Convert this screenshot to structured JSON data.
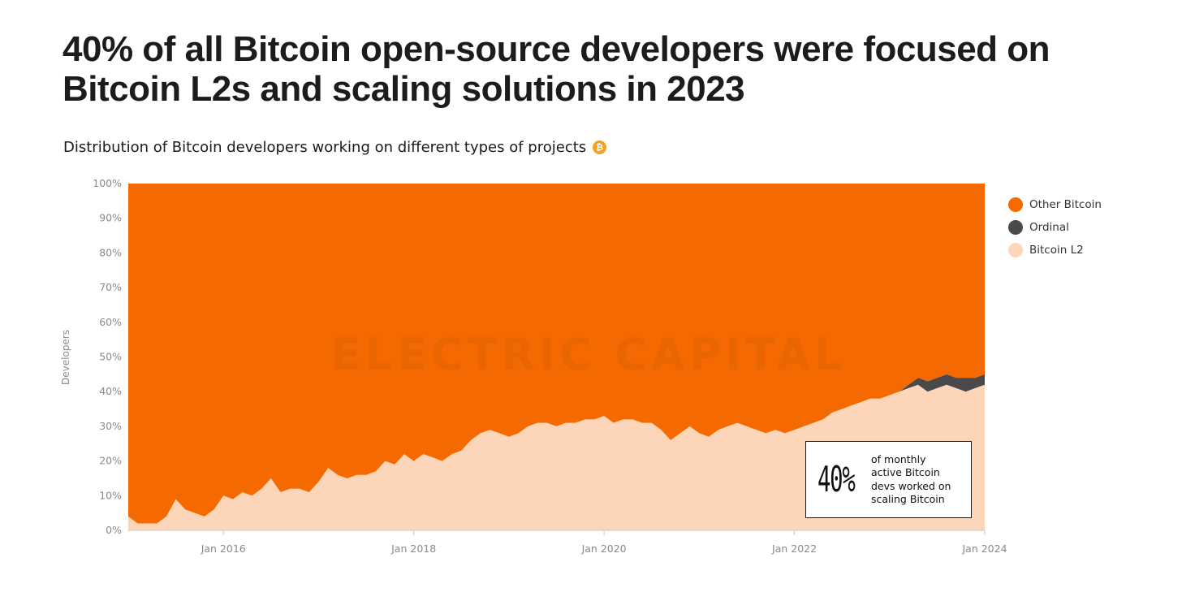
{
  "headline": "40% of all Bitcoin open-source developers were focused on Bitcoin L2s and scaling solutions in  2023",
  "subtitle": "Distribution of Bitcoin developers working on different types of projects",
  "subtitle_badge": "₿",
  "watermark": "ELECTRIC CAPITAL",
  "callout": {
    "big": "40%",
    "text": "of monthly\nactive Bitcoin\ndevs worked on\nscaling Bitcoin"
  },
  "colors": {
    "other_bitcoin": "#F56A00",
    "ordinal": "#4A4A4A",
    "bitcoin_l2": "#FDD5B8",
    "badge": "#F4A020"
  },
  "chart_data": {
    "type": "area",
    "stacked": true,
    "normalized_percent": true,
    "title": "Distribution of Bitcoin developers working on different types of projects",
    "xlabel": "",
    "ylabel": "Developers",
    "ylim": [
      0,
      100
    ],
    "y_ticks": [
      "0%",
      "10%",
      "20%",
      "30%",
      "40%",
      "50%",
      "60%",
      "70%",
      "80%",
      "90%",
      "100%"
    ],
    "x_ticks": [
      "Jan 2016",
      "Jan 2018",
      "Jan 2020",
      "Jan 2022",
      "Jan 2024"
    ],
    "x_range": [
      2015.0,
      2024.0
    ],
    "legend": [
      "Other Bitcoin",
      "Ordinal",
      "Bitcoin L2"
    ],
    "x": [
      2015.0,
      2015.1,
      2015.2,
      2015.3,
      2015.4,
      2015.5,
      2015.6,
      2015.7,
      2015.8,
      2015.9,
      2016.0,
      2016.1,
      2016.2,
      2016.3,
      2016.4,
      2016.5,
      2016.6,
      2016.7,
      2016.8,
      2016.9,
      2017.0,
      2017.1,
      2017.2,
      2017.3,
      2017.4,
      2017.5,
      2017.6,
      2017.7,
      2017.8,
      2017.9,
      2018.0,
      2018.1,
      2018.2,
      2018.3,
      2018.4,
      2018.5,
      2018.6,
      2018.7,
      2018.8,
      2018.9,
      2019.0,
      2019.1,
      2019.2,
      2019.3,
      2019.4,
      2019.5,
      2019.6,
      2019.7,
      2019.8,
      2019.9,
      2020.0,
      2020.1,
      2020.2,
      2020.3,
      2020.4,
      2020.5,
      2020.6,
      2020.7,
      2020.8,
      2020.9,
      2021.0,
      2021.1,
      2021.2,
      2021.3,
      2021.4,
      2021.5,
      2021.6,
      2021.7,
      2021.8,
      2021.9,
      2022.0,
      2022.1,
      2022.2,
      2022.3,
      2022.4,
      2022.5,
      2022.6,
      2022.7,
      2022.8,
      2022.9,
      2023.0,
      2023.1,
      2023.2,
      2023.3,
      2023.4,
      2023.5,
      2023.6,
      2023.7,
      2023.8,
      2023.9,
      2024.0
    ],
    "series": [
      {
        "name": "Bitcoin L2",
        "values": [
          4,
          2,
          2,
          2,
          4,
          9,
          6,
          5,
          4,
          6,
          10,
          9,
          11,
          10,
          12,
          15,
          11,
          12,
          12,
          11,
          14,
          18,
          16,
          15,
          16,
          16,
          17,
          20,
          19,
          22,
          20,
          22,
          21,
          20,
          22,
          23,
          26,
          28,
          29,
          28,
          27,
          28,
          30,
          31,
          31,
          30,
          31,
          31,
          32,
          32,
          33,
          31,
          32,
          32,
          31,
          31,
          29,
          26,
          28,
          30,
          28,
          27,
          29,
          30,
          31,
          30,
          29,
          28,
          29,
          28,
          29,
          30,
          31,
          32,
          34,
          35,
          36,
          37,
          38,
          38,
          39,
          40,
          41,
          42,
          40,
          41,
          42,
          41,
          40,
          41,
          42
        ]
      },
      {
        "name": "Ordinal",
        "values": [
          0,
          0,
          0,
          0,
          0,
          0,
          0,
          0,
          0,
          0,
          0,
          0,
          0,
          0,
          0,
          0,
          0,
          0,
          0,
          0,
          0,
          0,
          0,
          0,
          0,
          0,
          0,
          0,
          0,
          0,
          0,
          0,
          0,
          0,
          0,
          0,
          0,
          0,
          0,
          0,
          0,
          0,
          0,
          0,
          0,
          0,
          0,
          0,
          0,
          0,
          0,
          0,
          0,
          0,
          0,
          0,
          0,
          0,
          0,
          0,
          0,
          0,
          0,
          0,
          0,
          0,
          0,
          0,
          0,
          0,
          0,
          0,
          0,
          0,
          0,
          0,
          0,
          0,
          0,
          0,
          0,
          0,
          1,
          2,
          3,
          3,
          3,
          3,
          4,
          3,
          3
        ]
      },
      {
        "name": "Other Bitcoin",
        "values": [
          96,
          98,
          98,
          98,
          96,
          91,
          94,
          95,
          96,
          94,
          90,
          91,
          89,
          90,
          88,
          85,
          89,
          88,
          88,
          89,
          86,
          82,
          84,
          85,
          84,
          84,
          83,
          80,
          81,
          78,
          80,
          78,
          79,
          80,
          78,
          77,
          74,
          72,
          71,
          72,
          73,
          72,
          70,
          69,
          69,
          70,
          69,
          69,
          68,
          68,
          67,
          69,
          68,
          68,
          69,
          69,
          71,
          74,
          72,
          70,
          72,
          73,
          71,
          70,
          69,
          70,
          71,
          72,
          71,
          72,
          71,
          70,
          69,
          68,
          66,
          65,
          64,
          63,
          62,
          62,
          61,
          60,
          58,
          56,
          57,
          56,
          55,
          56,
          56,
          56,
          55
        ]
      }
    ]
  }
}
